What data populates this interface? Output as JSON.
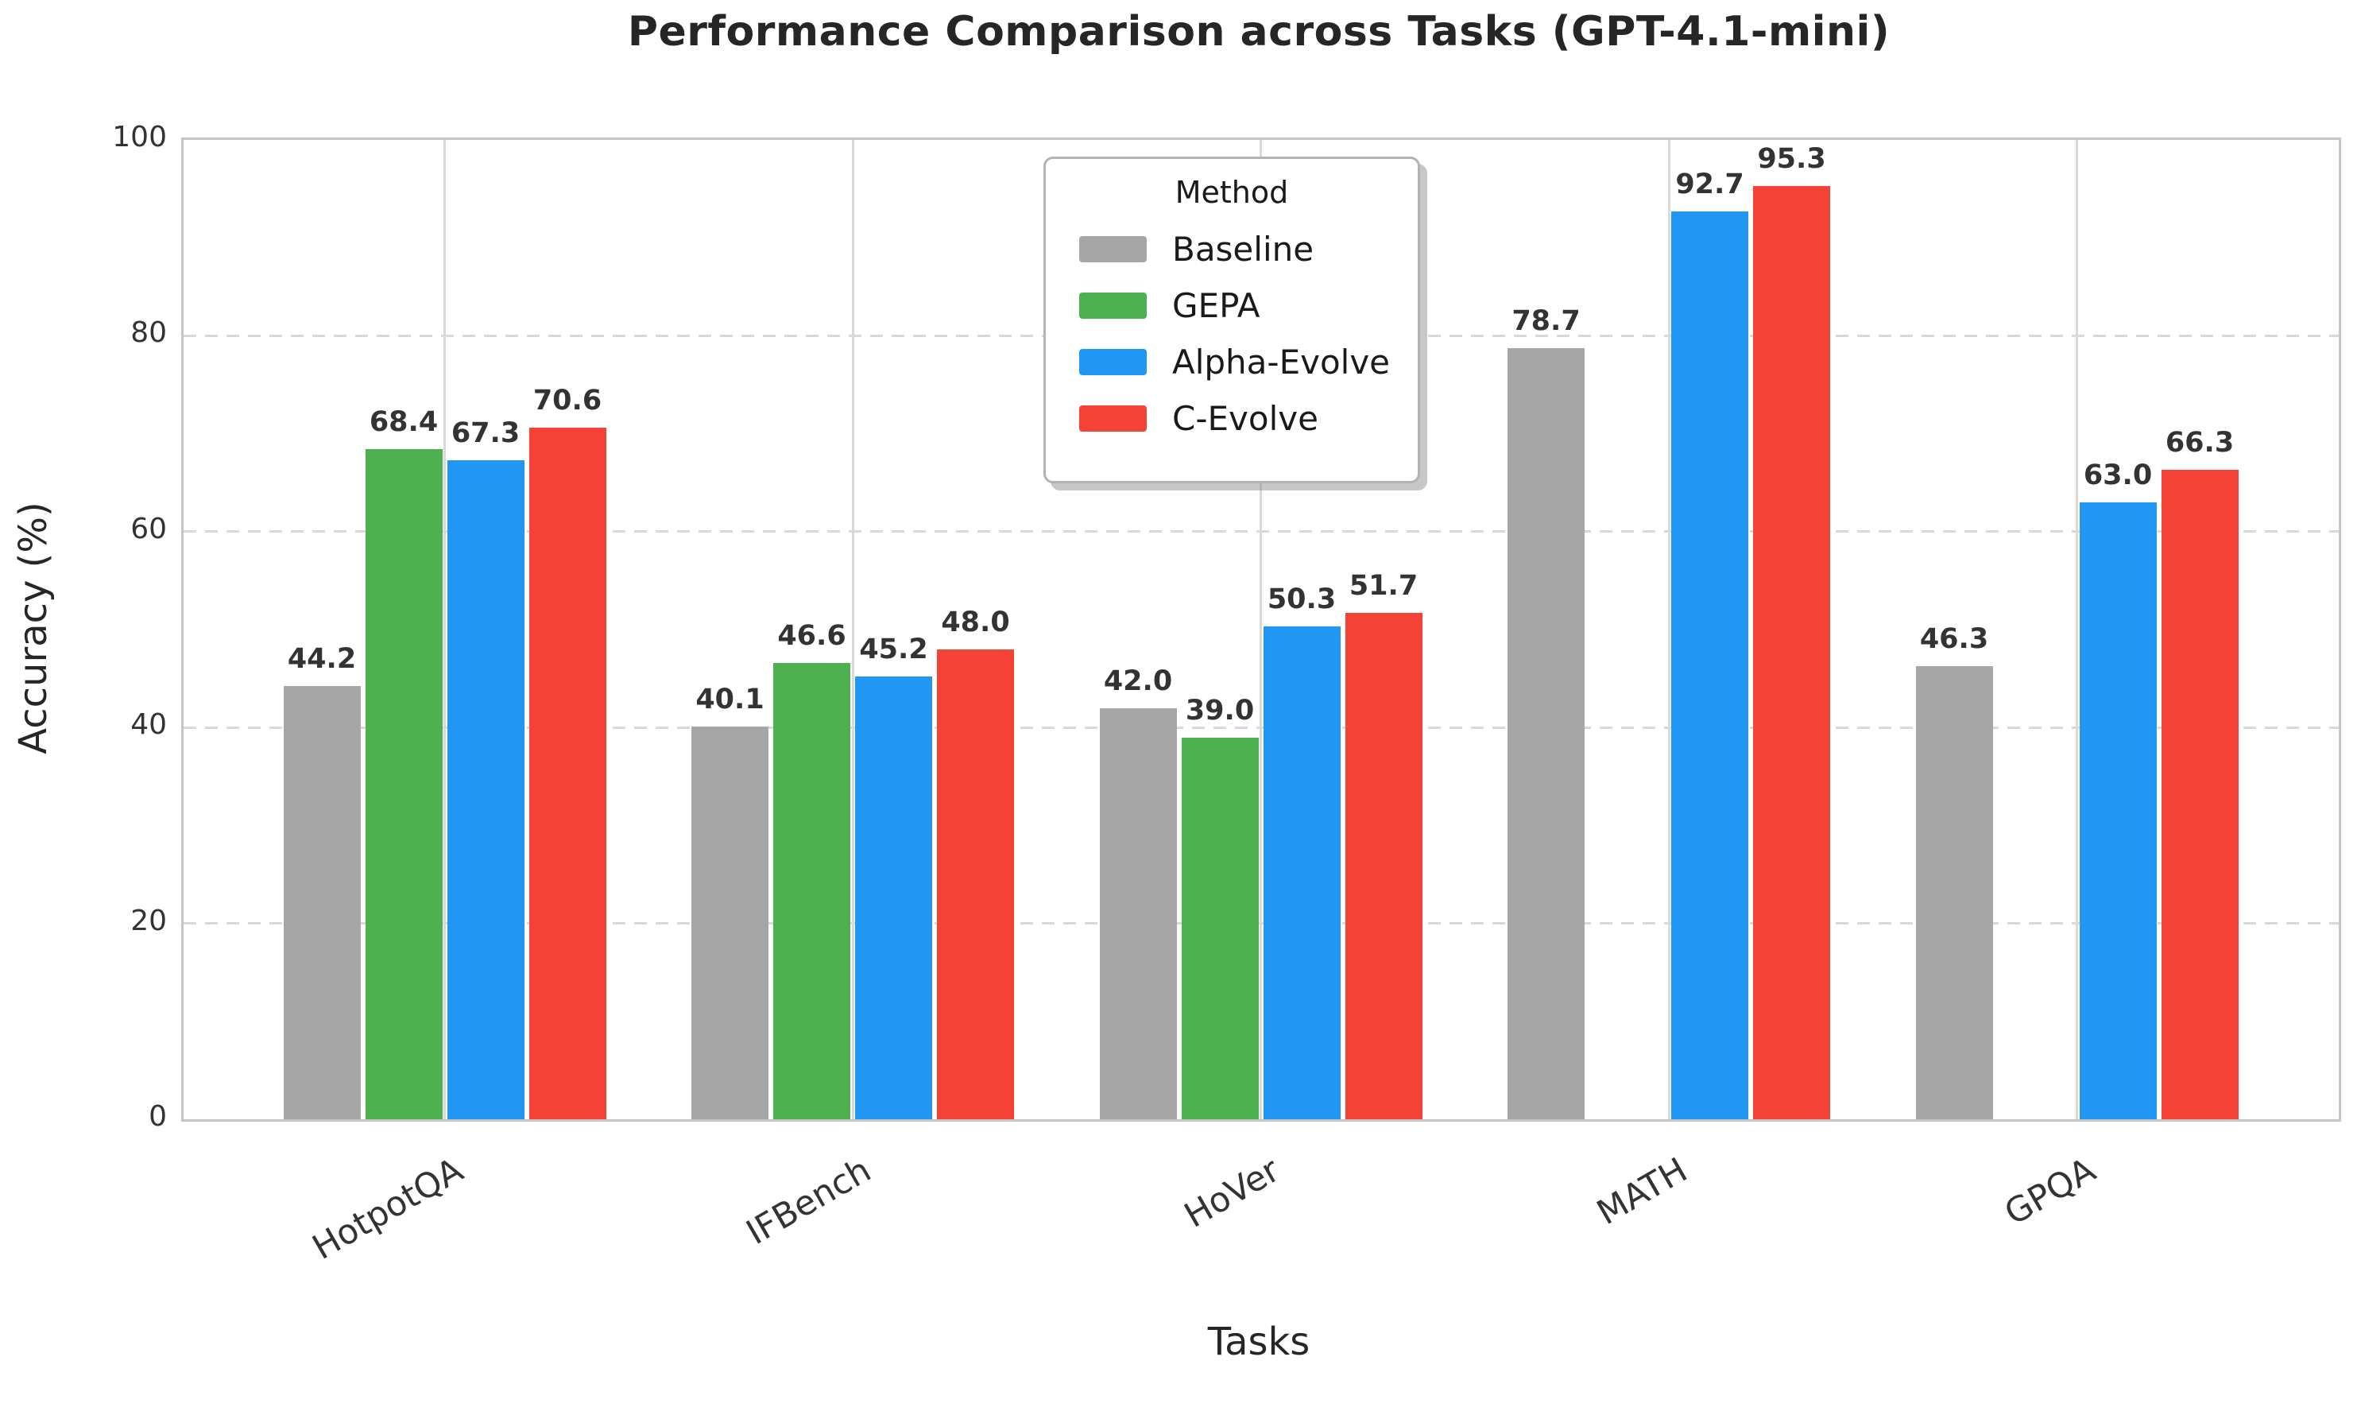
{
  "title": "Performance Comparison across Tasks (GPT-4.1-mini)",
  "axes": {
    "xlabel": "Tasks",
    "ylabel": "Accuracy (%)"
  },
  "legend": {
    "title": "Method"
  },
  "chart_data": {
    "type": "bar",
    "title": "Performance Comparison across Tasks (GPT-4.1-mini)",
    "xlabel": "Tasks",
    "ylabel": "Accuracy (%)",
    "ylim": [
      0,
      100
    ],
    "yticks": [
      0,
      20,
      40,
      60,
      80,
      100
    ],
    "grid": {
      "horizontal": "dashed",
      "vertical": "solid",
      "color": "#d9d9d9"
    },
    "legend_position": "upper center",
    "categories": [
      "HotpotQA",
      "IFBench",
      "HoVer",
      "MATH",
      "GPQA"
    ],
    "series": [
      {
        "name": "Baseline",
        "color": "#a6a6a6",
        "values": [
          44.2,
          40.1,
          42.0,
          78.7,
          46.3
        ]
      },
      {
        "name": "GEPA",
        "color": "#4caf50",
        "values": [
          68.4,
          46.6,
          39.0,
          null,
          null
        ]
      },
      {
        "name": "Alpha-Evolve",
        "color": "#2196f3",
        "values": [
          67.3,
          45.2,
          50.3,
          92.7,
          63.0
        ]
      },
      {
        "name": "C-Evolve",
        "color": "#f44336",
        "values": [
          70.6,
          48.0,
          51.7,
          95.3,
          66.3
        ]
      }
    ],
    "bar_value_labels_decimals": 1
  },
  "colors": {
    "baseline": "#a6a6a6",
    "gepa": "#4caf50",
    "alpha_evolve": "#2196f3",
    "c_evolve": "#f44336",
    "grid": "#d9d9d9",
    "spine": "#c6c6c6",
    "text_dark": "#262626",
    "text_tick": "#333333"
  }
}
